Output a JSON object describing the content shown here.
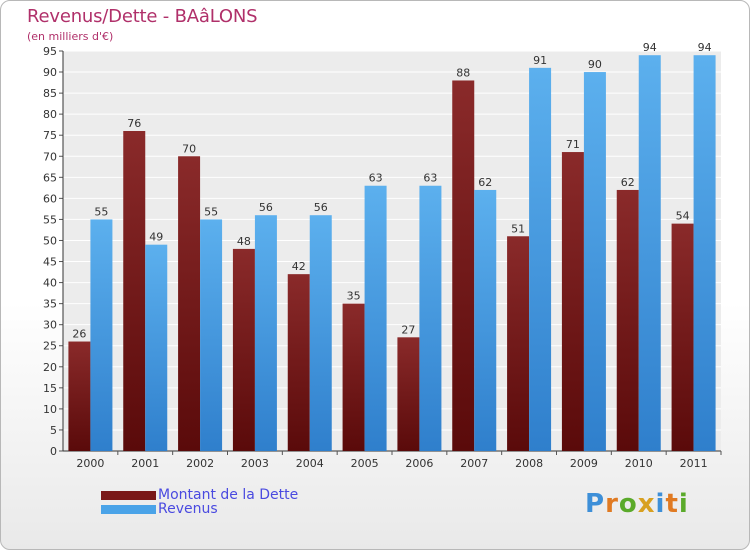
{
  "header": {
    "title": "Revenus/Dette - BAâLONS",
    "subtitle": "(en milliers d'€)"
  },
  "chart_data": {
    "type": "bar",
    "title": "Revenus/Dette - BAâLONS",
    "subtitle": "(en milliers d'€)",
    "categories": [
      "2000",
      "2001",
      "2002",
      "2003",
      "2004",
      "2005",
      "2006",
      "2007",
      "2008",
      "2009",
      "2010",
      "2011"
    ],
    "series": [
      {
        "name": "Montant de la Dette",
        "color": "#7a1818",
        "values": [
          26,
          76,
          70,
          48,
          42,
          35,
          27,
          88,
          51,
          71,
          62,
          54
        ]
      },
      {
        "name": "Revenus",
        "color": "#4aa3e8",
        "values": [
          55,
          49,
          55,
          56,
          56,
          63,
          63,
          62,
          91,
          90,
          94,
          94
        ]
      }
    ],
    "ylim": [
      0,
      95
    ],
    "ytick_step": 5,
    "grid": true,
    "legend_position": "bottom-left",
    "data_labels": true
  },
  "legend": {
    "items": [
      {
        "label": "Montant de la Dette",
        "color": "#7a1818"
      },
      {
        "label": "Revenus",
        "color": "#4aa3e8"
      }
    ]
  },
  "brand": {
    "letters": [
      "P",
      "r",
      "o",
      "x",
      "i",
      "t",
      "i"
    ],
    "colors": [
      "#3d8fd8",
      "#e07a22",
      "#5aaa2a",
      "#d8a020",
      "#3d8fd8",
      "#e07a22",
      "#5aaa2a"
    ]
  }
}
